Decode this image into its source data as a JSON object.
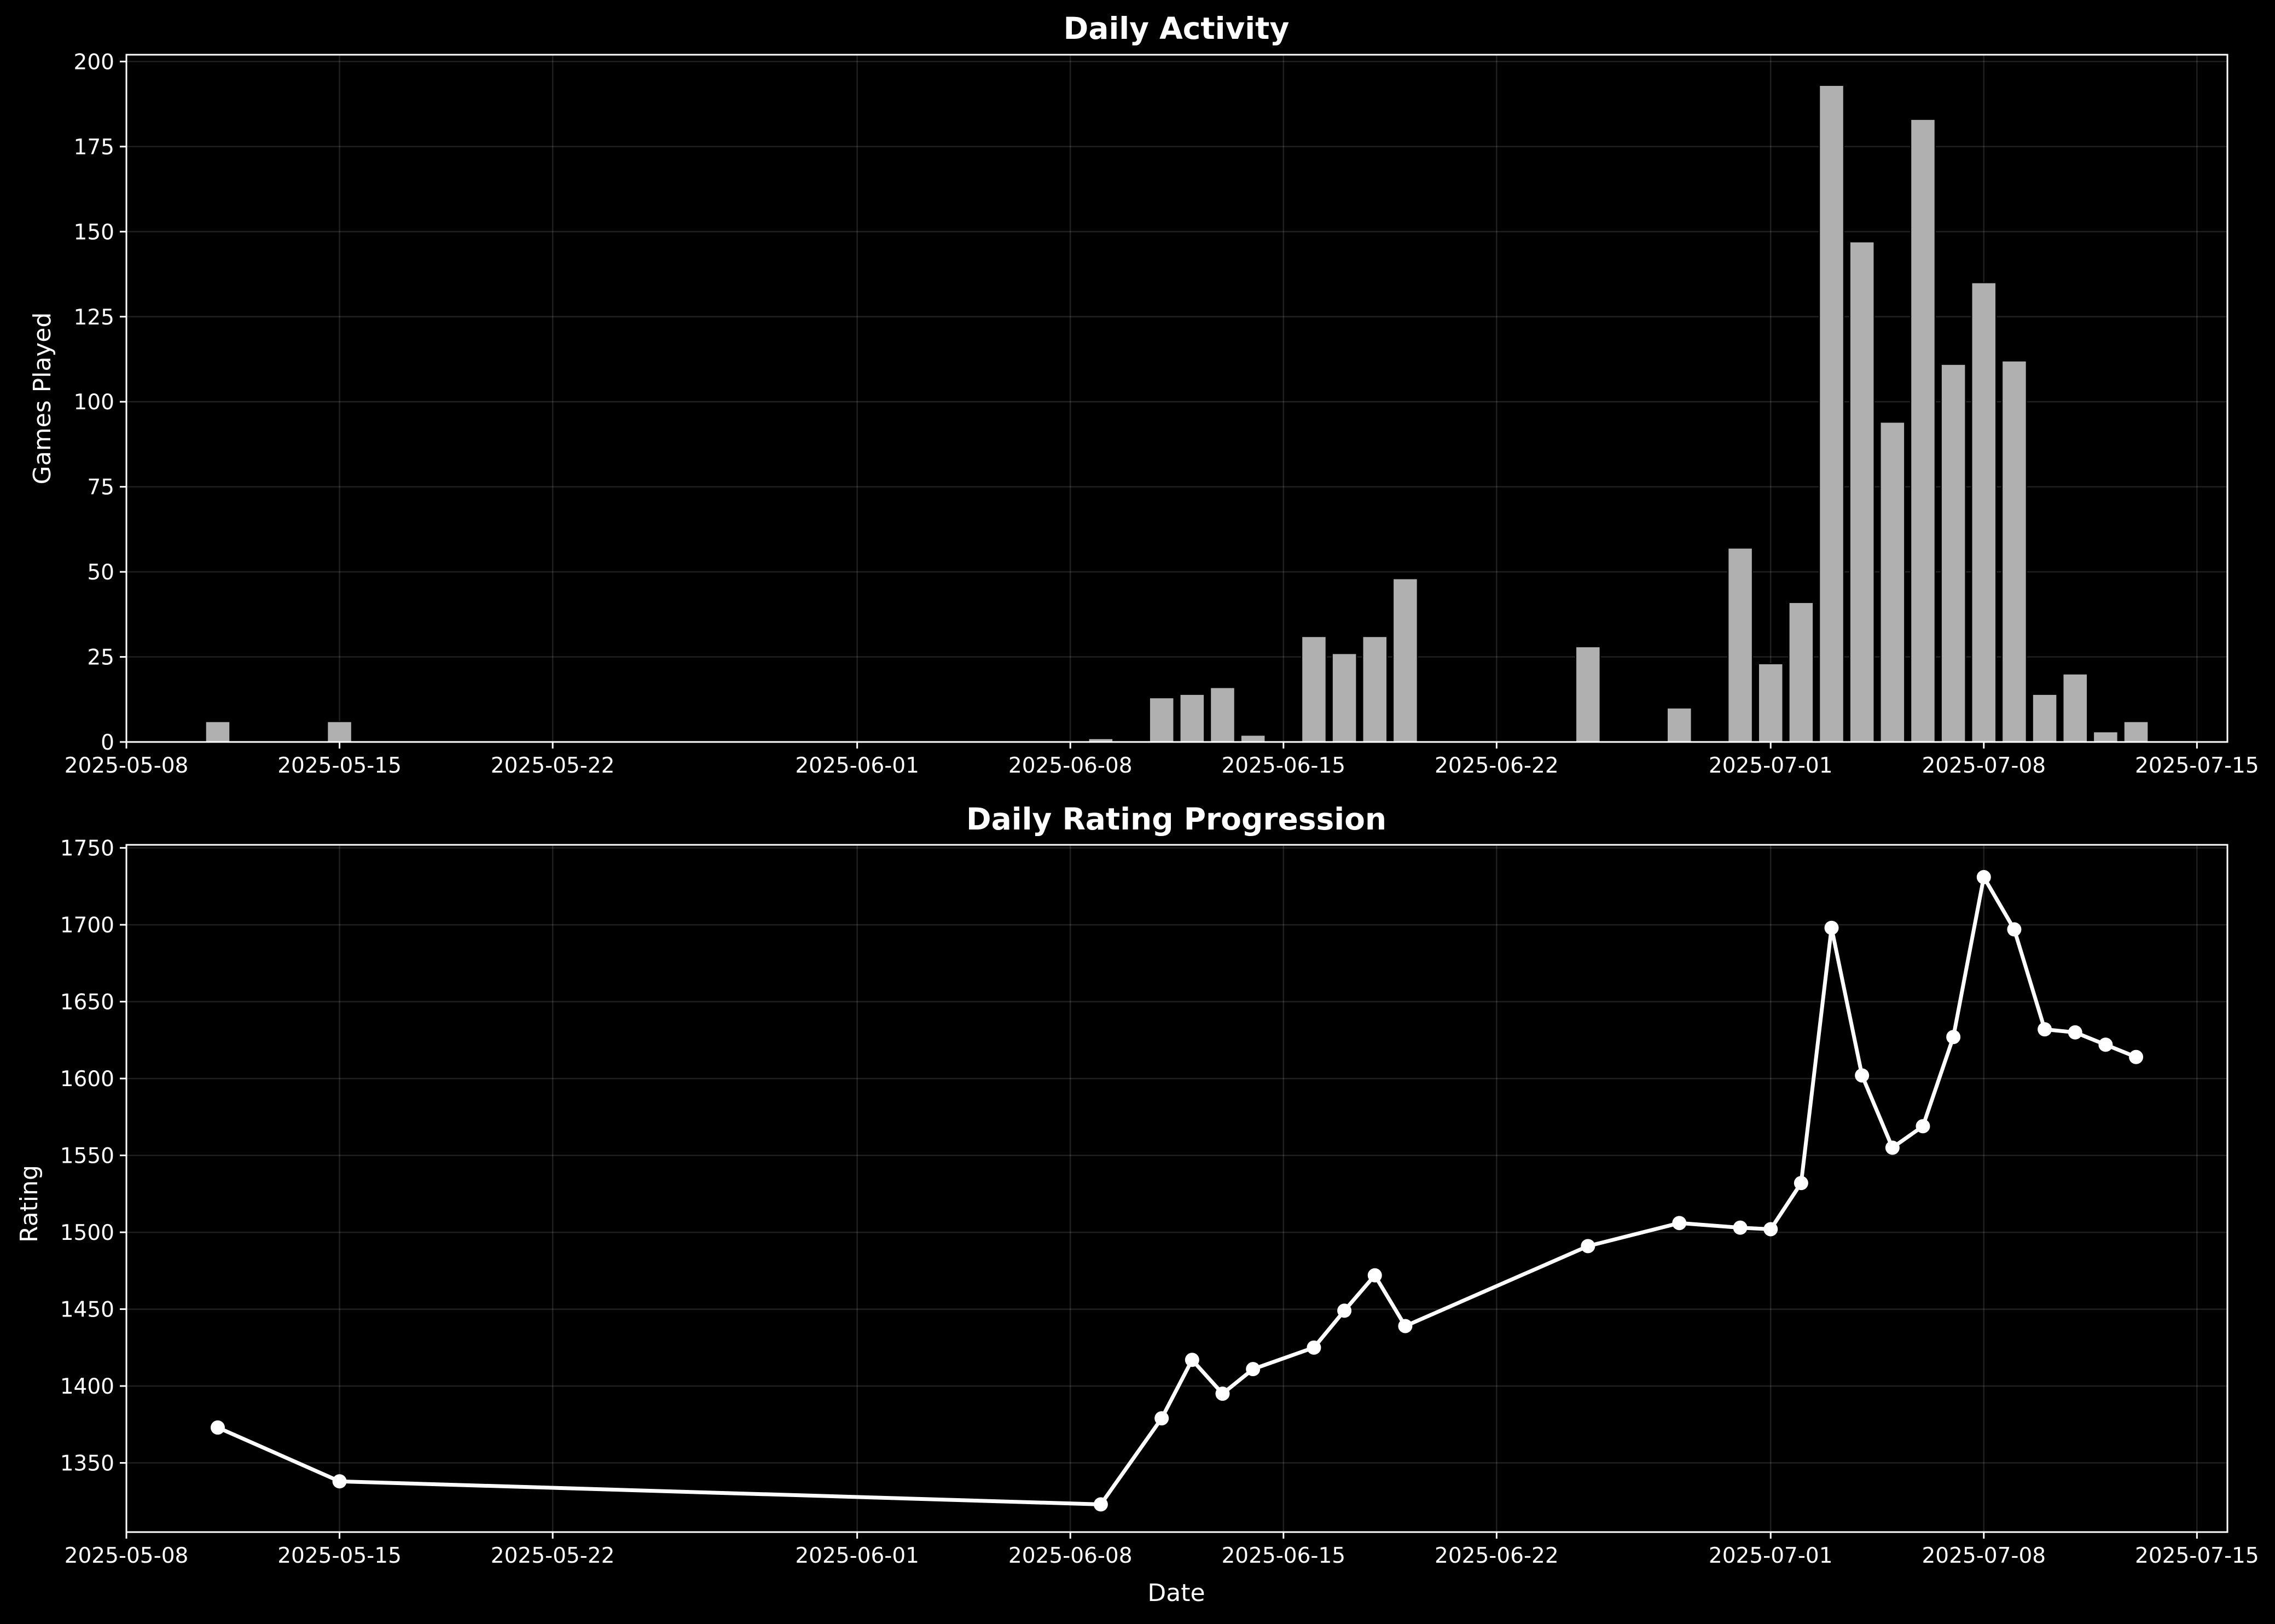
{
  "chart_data": [
    {
      "type": "bar",
      "title": "Daily Activity",
      "xlabel": "",
      "ylabel": "Games Played",
      "xlim": [
        "2025-05-08",
        "2025-07-16"
      ],
      "ylim": [
        0,
        202
      ],
      "yticks": [
        0,
        25,
        50,
        75,
        100,
        125,
        150,
        175,
        200
      ],
      "xticks": [
        "2025-05-08",
        "2025-05-15",
        "2025-05-22",
        "2025-06-01",
        "2025-06-08",
        "2025-06-15",
        "2025-06-22",
        "2025-07-01",
        "2025-07-08",
        "2025-07-15"
      ],
      "grid": true,
      "colors": {
        "bar": "#b0b0b0",
        "background": "#000000",
        "foreground": "#ffffff"
      },
      "x": [
        "2025-05-11",
        "2025-05-15",
        "2025-06-09",
        "2025-06-11",
        "2025-06-12",
        "2025-06-13",
        "2025-06-14",
        "2025-06-16",
        "2025-06-17",
        "2025-06-18",
        "2025-06-19",
        "2025-06-25",
        "2025-06-28",
        "2025-06-30",
        "2025-07-01",
        "2025-07-02",
        "2025-07-03",
        "2025-07-04",
        "2025-07-05",
        "2025-07-06",
        "2025-07-07",
        "2025-07-08",
        "2025-07-09",
        "2025-07-10",
        "2025-07-11",
        "2025-07-12",
        "2025-07-13"
      ],
      "values": [
        6,
        6,
        1,
        13,
        14,
        16,
        2,
        31,
        26,
        31,
        48,
        28,
        10,
        57,
        23,
        41,
        193,
        147,
        94,
        183,
        111,
        135,
        112,
        14,
        20,
        3,
        6
      ]
    },
    {
      "type": "line",
      "title": "Daily Rating Progression",
      "xlabel": "Date",
      "ylabel": "Rating",
      "xlim": [
        "2025-05-08",
        "2025-07-16"
      ],
      "ylim": [
        1305,
        1752
      ],
      "yticks": [
        1350,
        1400,
        1450,
        1500,
        1550,
        1600,
        1650,
        1700,
        1750
      ],
      "xticks": [
        "2025-05-08",
        "2025-05-15",
        "2025-05-22",
        "2025-06-01",
        "2025-06-08",
        "2025-06-15",
        "2025-06-22",
        "2025-07-01",
        "2025-07-08",
        "2025-07-15"
      ],
      "grid": true,
      "markers": true,
      "colors": {
        "line": "#ffffff",
        "background": "#000000"
      },
      "x": [
        "2025-05-11",
        "2025-05-15",
        "2025-06-09",
        "2025-06-11",
        "2025-06-12",
        "2025-06-13",
        "2025-06-14",
        "2025-06-16",
        "2025-06-17",
        "2025-06-18",
        "2025-06-19",
        "2025-06-25",
        "2025-06-28",
        "2025-06-30",
        "2025-07-01",
        "2025-07-02",
        "2025-07-03",
        "2025-07-04",
        "2025-07-05",
        "2025-07-06",
        "2025-07-07",
        "2025-07-08",
        "2025-07-09",
        "2025-07-10",
        "2025-07-11",
        "2025-07-12",
        "2025-07-13"
      ],
      "values": [
        1373,
        1338,
        1323,
        1379,
        1417,
        1395,
        1411,
        1425,
        1449,
        1472,
        1439,
        1491,
        1506,
        1503,
        1502,
        1532,
        1698,
        1602,
        1555,
        1569,
        1627,
        1731,
        1697,
        1632,
        1630,
        1622,
        1614
      ]
    }
  ]
}
